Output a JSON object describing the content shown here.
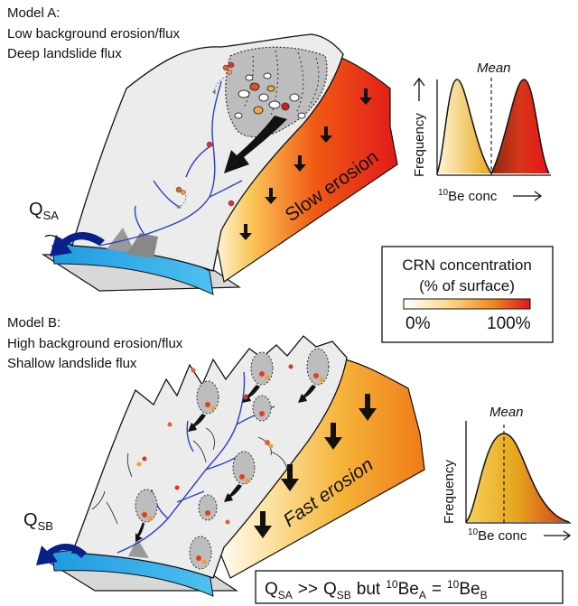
{
  "model_a": {
    "title": "Model A:",
    "line1": "Low background erosion/flux",
    "line2": "Deep landslide flux",
    "flux_label_main": "Q",
    "flux_label_sub": "SA",
    "erosion_label": "Slow erosion"
  },
  "model_b": {
    "title": "Model B:",
    "line1": "High background erosion/flux",
    "line2": "Shallow landslide flux",
    "flux_label_main": "Q",
    "flux_label_sub": "SB",
    "erosion_label": "Fast erosion"
  },
  "histogram_a": {
    "y_label": "Frequency",
    "x_label_super": "10",
    "x_label": "Be conc",
    "mean_label": "Mean"
  },
  "histogram_b": {
    "y_label": "Frequency",
    "x_label_super": "10",
    "x_label": "Be conc",
    "mean_label": "Mean"
  },
  "legend": {
    "title_line1": "CRN concentration",
    "title_line2": "(% of surface)",
    "min_label": "0%",
    "max_label": "100%"
  },
  "summary": {
    "q1": "Q",
    "q1_sub": "SA",
    "gg": ">>",
    "q2": "Q",
    "q2_sub": "SB",
    "but": "but",
    "be1_sup": "10",
    "be1": "Be",
    "be1_sub": "A",
    "eq": "=",
    "be2_sup": "10",
    "be2": "Be",
    "be2_sub": "B"
  },
  "colors": {
    "river": "#29a8e8",
    "flux_arrow": "#0a1f8a",
    "stream": "#2b3fc9",
    "surface_high": "#e21a1a",
    "surface_mid": "#f2a51a",
    "surface_low": "#fdf3c4",
    "hillslope": "#ececec"
  }
}
